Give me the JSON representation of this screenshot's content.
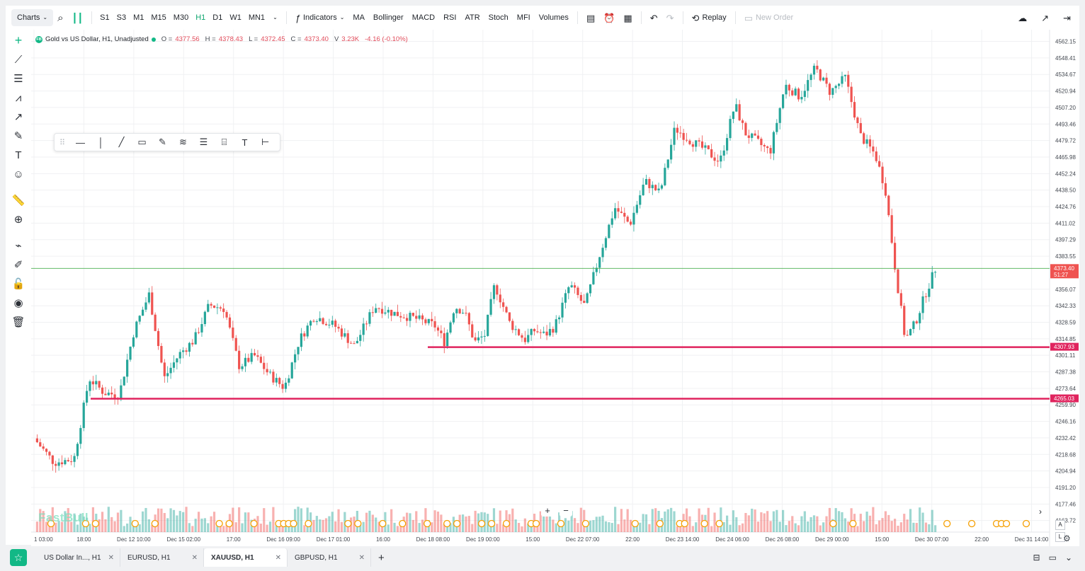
{
  "toolbar": {
    "charts_label": "Charts",
    "timeframes": [
      "S1",
      "S3",
      "M1",
      "M15",
      "M30",
      "H1",
      "D1",
      "W1",
      "MN1"
    ],
    "active_timeframe": "H1",
    "indicators_label": "Indicators",
    "indicator_shortcuts": [
      "MA",
      "Bollinger",
      "MACD",
      "RSI",
      "ATR",
      "Stoch",
      "MFI",
      "Volumes"
    ],
    "replay_label": "Replay",
    "new_order_label": "New Order"
  },
  "legend": {
    "badge": "FB",
    "symbol": "Gold vs US Dollar, H1, Unadjusted",
    "o_label": "O =",
    "o": "4377.56",
    "h_label": "H =",
    "h": "4378.43",
    "l_label": "L =",
    "l": "4372.45",
    "c_label": "C =",
    "c": "4373.40",
    "v_label": "V",
    "v": "3.23K",
    "change": "-4.16 (-0.10%)"
  },
  "watermark": "FastBull",
  "price_axis": {
    "labels": [
      "4562.15",
      "4548.41",
      "4534.67",
      "4520.94",
      "4507.20",
      "4493.46",
      "4479.72",
      "4465.98",
      "4452.24",
      "4438.50",
      "4424.76",
      "4411.02",
      "4397.29",
      "4383.55",
      "4356.07",
      "4342.33",
      "4328.59",
      "4314.85",
      "4301.11",
      "4287.38",
      "4273.64",
      "4259.90",
      "4246.16",
      "4232.42",
      "4218.68",
      "4204.94",
      "4191.20",
      "4177.46",
      "4163.72"
    ],
    "current_price": "4373.40",
    "countdown": "51:27",
    "level_1": "4307.93",
    "level_2": "4265.03",
    "auto_label": "A",
    "log_label": "L"
  },
  "time_axis": [
    "1 03:00",
    "18:00",
    "Dec 12 10:00",
    "Dec 15 02:00",
    "17:00",
    "Dec 16 09:00",
    "Dec 17 01:00",
    "16:00",
    "Dec 18 08:00",
    "Dec 19 00:00",
    "15:00",
    "Dec 22 07:00",
    "22:00",
    "Dec 23 14:00",
    "Dec 24 06:00",
    "Dec 26 08:00",
    "Dec 29 00:00",
    "15:00",
    "Dec 30 07:00",
    "22:00",
    "Dec 31 14:00"
  ],
  "tabs": [
    {
      "label": "US Dollar In..., H1",
      "active": false
    },
    {
      "label": "EURUSD, H1",
      "active": false
    },
    {
      "label": "XAUUSD, H1",
      "active": true
    },
    {
      "label": "GBPUSD, H1",
      "active": false
    }
  ],
  "colors": {
    "up": "#26a69a",
    "down": "#ef5350",
    "level": "#e0245e",
    "price_line": "#4caf50",
    "accent": "#12b886"
  },
  "chart_data": {
    "type": "candlestick",
    "symbol": "Gold vs US Dollar, H1, Unadjusted",
    "ylim": [
      4160,
      4566
    ],
    "close_path_x": [
      0,
      0.02,
      0.04,
      0.055,
      0.07,
      0.085,
      0.1,
      0.115,
      0.13,
      0.145,
      0.16,
      0.175,
      0.19,
      0.205,
      0.22,
      0.235,
      0.25,
      0.265,
      0.28,
      0.3,
      0.32,
      0.34,
      0.36,
      0.38,
      0.4,
      0.41,
      0.42,
      0.43,
      0.44,
      0.45,
      0.46,
      0.475,
      0.49,
      0.5,
      0.51,
      0.52,
      0.535,
      0.55,
      0.565,
      0.58,
      0.595,
      0.61,
      0.625,
      0.64,
      0.655,
      0.67,
      0.685,
      0.7,
      0.71,
      0.72,
      0.735,
      0.75,
      0.765,
      0.78,
      0.795,
      0.81,
      0.825,
      0.84,
      0.85,
      0.86,
      0.87,
      0.88,
      0.89,
      0.9
    ],
    "close_path_y": [
      4232,
      4212,
      4215,
      4282,
      4270,
      4268,
      4322,
      4352,
      4282,
      4302,
      4314,
      4343,
      4340,
      4292,
      4301,
      4285,
      4274,
      4314,
      4334,
      4326,
      4309,
      4342,
      4336,
      4332,
      4326,
      4312,
      4342,
      4337,
      4312,
      4318,
      4360,
      4328,
      4314,
      4322,
      4318,
      4325,
      4360,
      4342,
      4385,
      4424,
      4410,
      4446,
      4436,
      4490,
      4480,
      4472,
      4462,
      4510,
      4486,
      4480,
      4470,
      4526,
      4516,
      4540,
      4520,
      4532,
      4484,
      4468,
      4440,
      4373,
      4314,
      4328,
      4352,
      4373
    ]
  }
}
